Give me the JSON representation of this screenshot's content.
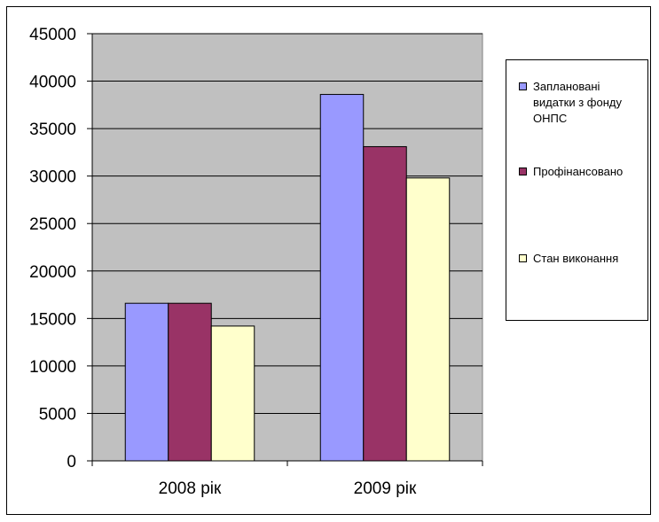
{
  "chart_data": {
    "type": "bar",
    "categories": [
      "2008 рік",
      "2009 рік"
    ],
    "series": [
      {
        "name": "Заплановані видатки з фонду ОНПС",
        "values": [
          16600,
          38600
        ],
        "color": "#9999ff"
      },
      {
        "name": "Профінансовано",
        "values": [
          16600,
          33100
        ],
        "color": "#993366"
      },
      {
        "name": "Стан виконання",
        "values": [
          14200,
          29800
        ],
        "color": "#ffffcc"
      }
    ],
    "yticks": [
      "0",
      "5000",
      "10000",
      "15000",
      "20000",
      "25000",
      "30000",
      "35000",
      "40000",
      "45000"
    ],
    "ylim": [
      0,
      45000
    ],
    "grid": true,
    "plot_background": "#c0c0c0",
    "legend_position": "right"
  }
}
